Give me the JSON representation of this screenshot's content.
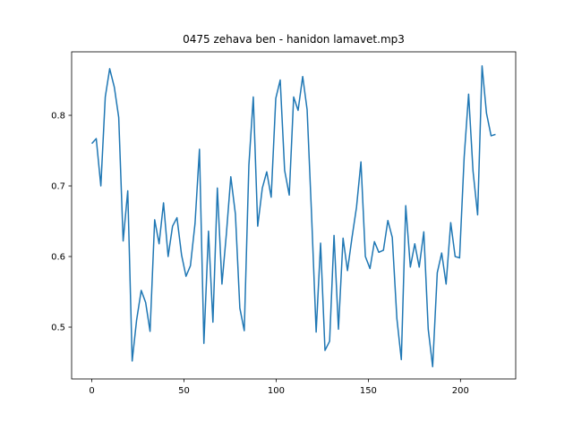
{
  "chart_data": {
    "type": "line",
    "title": "0475 zehava ben - hanidon lamavet.mp3",
    "x": [
      0,
      2.4,
      4.9,
      7.3,
      9.7,
      12.2,
      14.6,
      17.0,
      19.5,
      21.9,
      24.3,
      26.8,
      29.2,
      31.6,
      34.1,
      36.5,
      38.9,
      41.4,
      43.8,
      46.2,
      48.7,
      51.1,
      53.5,
      56.0,
      58.4,
      60.8,
      63.3,
      65.7,
      68.1,
      70.6,
      73.0,
      75.4,
      77.9,
      80.3,
      82.7,
      85.2,
      87.6,
      90.0,
      92.5,
      94.9,
      97.3,
      99.8,
      102.2,
      104.6,
      107.1,
      109.5,
      111.9,
      114.4,
      116.8,
      119.2,
      121.7,
      124.1,
      126.5,
      129.0,
      131.4,
      133.8,
      136.3,
      138.7,
      141.1,
      143.6,
      146.0,
      148.4,
      150.9,
      153.3,
      155.7,
      158.2,
      160.6,
      163.0,
      165.5,
      167.9,
      170.3,
      172.8,
      175.2,
      177.6,
      180.1,
      182.5,
      184.9,
      187.4,
      189.8,
      192.2,
      194.7,
      197.1,
      199.5,
      202.0,
      204.4,
      206.8,
      209.3,
      211.7,
      214.1,
      216.6,
      219.0
    ],
    "series": [
      {
        "color": "#1f77b4",
        "values": [
          0.76,
          0.767,
          0.7,
          0.826,
          0.866,
          0.84,
          0.797,
          0.622,
          0.693,
          0.452,
          0.51,
          0.552,
          0.535,
          0.494,
          0.652,
          0.618,
          0.676,
          0.6,
          0.643,
          0.655,
          0.602,
          0.572,
          0.587,
          0.647,
          0.752,
          0.477,
          0.636,
          0.507,
          0.697,
          0.561,
          0.632,
          0.713,
          0.66,
          0.527,
          0.495,
          0.729,
          0.826,
          0.643,
          0.697,
          0.72,
          0.684,
          0.824,
          0.85,
          0.722,
          0.687,
          0.826,
          0.807,
          0.855,
          0.808,
          0.66,
          0.493,
          0.619,
          0.467,
          0.48,
          0.63,
          0.497,
          0.626,
          0.58,
          0.626,
          0.67,
          0.734,
          0.6,
          0.583,
          0.621,
          0.606,
          0.609,
          0.651,
          0.627,
          0.512,
          0.454,
          0.672,
          0.585,
          0.618,
          0.585,
          0.635,
          0.497,
          0.444,
          0.577,
          0.605,
          0.561,
          0.648,
          0.6,
          0.598,
          0.741,
          0.83,
          0.721,
          0.659,
          0.87,
          0.803,
          0.771,
          0.773
        ]
      }
    ],
    "xlim": [
      -10.95,
      229.95
    ],
    "ylim": [
      0.4266,
      0.8899
    ],
    "xticks": [
      0,
      50,
      100,
      150,
      200
    ],
    "yticks": [
      0.5,
      0.6,
      0.7,
      0.8
    ]
  }
}
